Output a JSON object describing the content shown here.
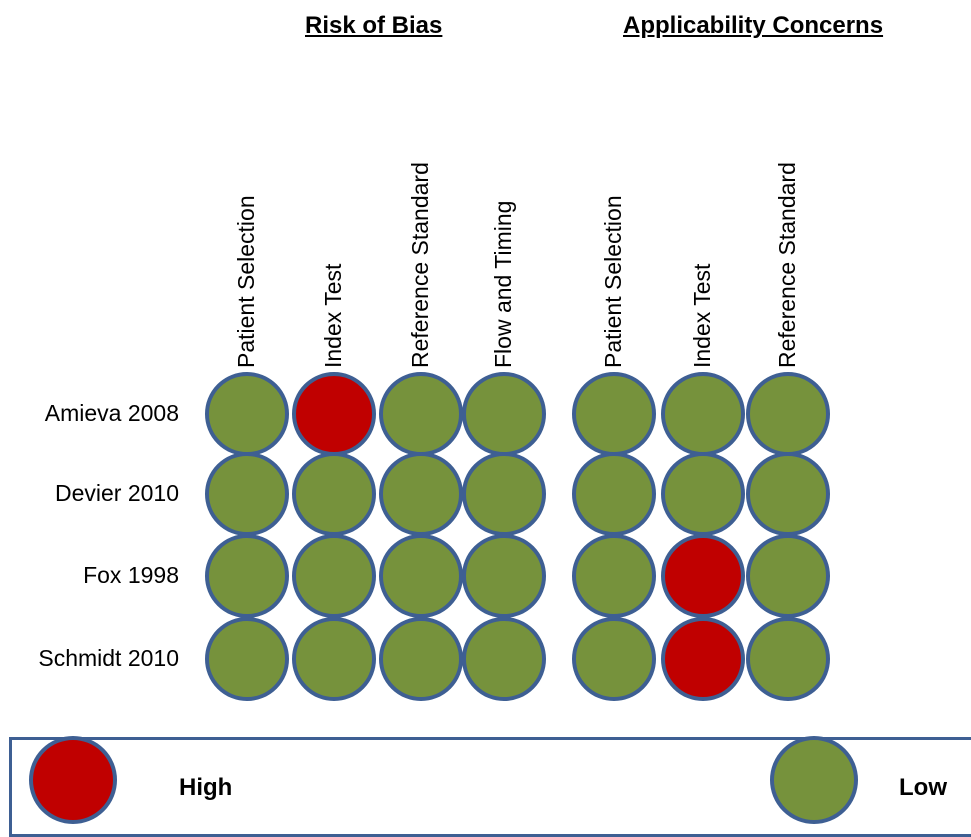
{
  "titles": {
    "risk_of_bias": "Risk of Bias",
    "applicability": "Applicability Concerns"
  },
  "legend": {
    "high": "High",
    "low": "Low"
  },
  "colors": {
    "high": "#c00000",
    "low": "#76923c",
    "outline": "#3e5f93"
  },
  "chart_data": {
    "type": "table",
    "groups": [
      {
        "name": "Risk of Bias",
        "domains": [
          "Patient Selection",
          "Index Test",
          "Reference Standard",
          "Flow and Timing"
        ]
      },
      {
        "name": "Applicability Concerns",
        "domains": [
          "Patient Selection",
          "Index Test",
          "Reference Standard"
        ]
      }
    ],
    "studies": [
      "Amieva 2008",
      "Devier 2010",
      "Fox 1998",
      "Schmidt 2010"
    ],
    "ratings": [
      [
        "Low",
        "High",
        "Low",
        "Low",
        "Low",
        "Low",
        "Low"
      ],
      [
        "Low",
        "Low",
        "Low",
        "Low",
        "Low",
        "Low",
        "Low"
      ],
      [
        "Low",
        "Low",
        "Low",
        "Low",
        "Low",
        "High",
        "Low"
      ],
      [
        "Low",
        "Low",
        "Low",
        "Low",
        "Low",
        "High",
        "Low"
      ]
    ]
  }
}
